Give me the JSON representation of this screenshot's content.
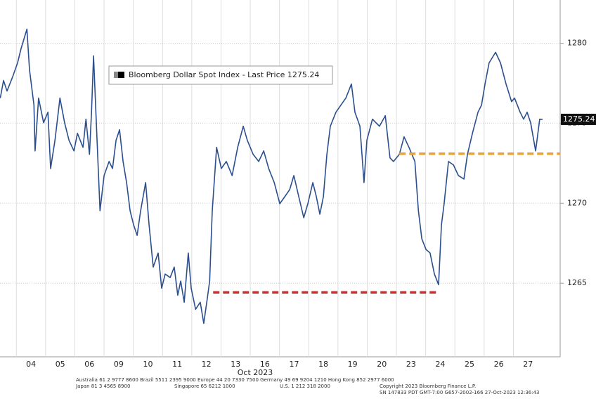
{
  "chart_data": {
    "type": "line",
    "xlabel": "Oct 2023",
    "x": [
      -1.05,
      -0.94,
      -0.82,
      -0.63,
      -0.46,
      -0.34,
      -0.14,
      -0.05,
      0.1,
      0.14,
      0.26,
      0.43,
      0.58,
      0.67,
      0.82,
      0.99,
      1.15,
      1.3,
      1.47,
      1.59,
      1.78,
      1.88,
      2.0,
      2.07,
      2.14,
      2.26,
      2.36,
      2.5,
      2.67,
      2.79,
      2.91,
      3.03,
      3.15,
      3.27,
      3.39,
      3.51,
      3.63,
      3.75,
      3.92,
      4.04,
      4.18,
      4.35,
      4.47,
      4.59,
      4.76,
      4.9,
      5.02,
      5.12,
      5.24,
      5.38,
      5.48,
      5.63,
      5.79,
      5.91,
      6.03,
      6.11,
      6.2,
      6.35,
      6.51,
      6.68,
      6.88,
      7.07,
      7.26,
      7.4,
      7.6,
      7.79,
      7.96,
      8.13,
      8.32,
      8.51,
      8.68,
      8.85,
      8.99,
      9.16,
      9.33,
      9.47,
      9.64,
      9.76,
      9.88,
      10.0,
      10.12,
      10.24,
      10.43,
      10.6,
      10.77,
      10.96,
      11.08,
      11.25,
      11.39,
      11.49,
      11.68,
      11.92,
      12.12,
      12.28,
      12.4,
      12.6,
      12.76,
      12.93,
      13.13,
      13.25,
      13.37,
      13.51,
      13.65,
      13.8,
      13.94,
      14.04,
      14.13,
      14.28,
      14.45,
      14.62,
      14.81,
      14.93,
      15.1,
      15.29,
      15.41,
      15.53,
      15.67,
      15.89,
      16.06,
      16.25,
      16.44,
      16.54,
      16.73,
      16.85,
      16.97,
      17.09,
      17.26,
      17.4,
      17.5
    ],
    "series": [
      {
        "name": "Bloomberg Dollar Spot Index - Last Price 1275.24",
        "color": "#2b4f8e",
        "values": [
          1276.57,
          1277.67,
          1277.01,
          1277.89,
          1278.77,
          1279.65,
          1280.88,
          1278.33,
          1276.13,
          1273.27,
          1276.57,
          1275.03,
          1275.69,
          1272.17,
          1273.93,
          1276.57,
          1275.03,
          1273.93,
          1273.27,
          1274.37,
          1273.49,
          1275.25,
          1273.05,
          1275.69,
          1279.21,
          1273.93,
          1269.53,
          1271.73,
          1272.61,
          1272.17,
          1273.93,
          1274.59,
          1272.61,
          1271.29,
          1269.53,
          1268.65,
          1267.99,
          1269.53,
          1271.29,
          1268.65,
          1266.01,
          1266.89,
          1264.69,
          1265.57,
          1265.35,
          1266.01,
          1264.25,
          1265.13,
          1263.81,
          1266.89,
          1264.69,
          1263.37,
          1263.81,
          1262.49,
          1264.03,
          1265.13,
          1269.53,
          1273.49,
          1272.17,
          1272.61,
          1271.73,
          1273.49,
          1274.81,
          1273.93,
          1273.05,
          1272.61,
          1273.27,
          1272.17,
          1271.29,
          1269.97,
          1270.41,
          1270.85,
          1271.73,
          1270.41,
          1269.09,
          1269.97,
          1271.29,
          1270.41,
          1269.31,
          1270.41,
          1273.05,
          1274.81,
          1275.69,
          1276.13,
          1276.57,
          1277.45,
          1275.69,
          1274.81,
          1271.29,
          1273.93,
          1275.25,
          1274.81,
          1275.47,
          1272.83,
          1272.61,
          1273.05,
          1274.15,
          1273.49,
          1272.61,
          1269.53,
          1267.77,
          1267.11,
          1266.89,
          1265.57,
          1264.91,
          1268.65,
          1269.97,
          1272.61,
          1272.39,
          1271.73,
          1271.51,
          1273.05,
          1274.37,
          1275.69,
          1276.13,
          1277.45,
          1278.77,
          1279.43,
          1278.77,
          1277.45,
          1276.35,
          1276.57,
          1275.69,
          1275.25,
          1275.69,
          1275.03,
          1273.27,
          1275.25,
          1275.24
        ]
      }
    ],
    "last_price": 1275.24,
    "levels": [
      {
        "x": [
          6.23,
          13.94
        ],
        "y": 1264.43,
        "color": "#d42a2a"
      },
      {
        "x": [
          12.6,
          18.1
        ],
        "y": 1273.09,
        "color": "#e8a23a"
      }
    ],
    "xlim": [
      -1.06,
      18.1
    ],
    "xticks": [
      {
        "value": 0,
        "label": "04"
      },
      {
        "value": 1,
        "label": "05"
      },
      {
        "value": 2,
        "label": "06"
      },
      {
        "value": 3,
        "label": "09"
      },
      {
        "value": 4,
        "label": "10"
      },
      {
        "value": 5,
        "label": "11"
      },
      {
        "value": 6,
        "label": "12"
      },
      {
        "value": 7,
        "label": "13"
      },
      {
        "value": 8,
        "label": "16"
      },
      {
        "value": 9,
        "label": "17"
      },
      {
        "value": 10,
        "label": "18"
      },
      {
        "value": 11,
        "label": "19"
      },
      {
        "value": 12,
        "label": "20"
      },
      {
        "value": 13,
        "label": "23"
      },
      {
        "value": 14,
        "label": "24"
      },
      {
        "value": 15,
        "label": "25"
      },
      {
        "value": 16,
        "label": "26"
      },
      {
        "value": 17,
        "label": "27"
      }
    ],
    "ylim": [
      1260.4,
      1282.7
    ],
    "yticks": [
      1265,
      1270,
      1275,
      1280
    ],
    "grid": true
  },
  "footer": {
    "line1": "Australia 61 2 9777 8600 Brazil 5511 2395 9000 Europe 44 20 7330 7500 Germany 49 69 9204 1210 Hong Kong 852 2977 6000",
    "japan": "Japan 81 3 4565 8900",
    "singapore": "Singapore 65 6212 1000",
    "us": "U.S. 1 212 318 2000",
    "copyright": "Copyright 2023 Bloomberg Finance L.P.",
    "session": "SN 147833 PDT  GMT-7:00 G657-2002-166 27-Oct-2023 12:36:43"
  }
}
